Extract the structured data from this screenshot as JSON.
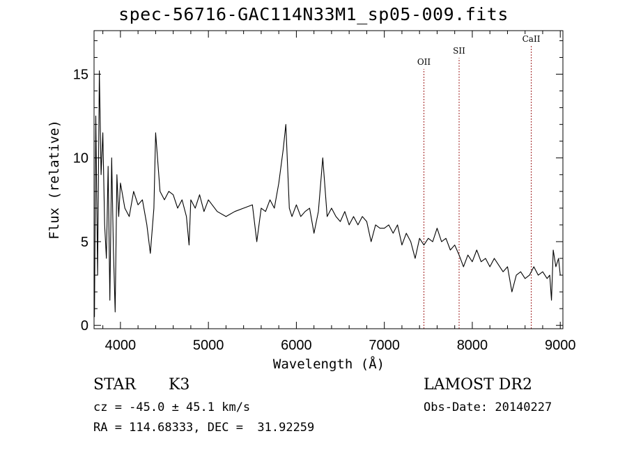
{
  "chart_data": {
    "type": "line",
    "title": "spec-56716-GAC114N33M1_sp05-009.fits",
    "xlabel": "Wavelength (Å)",
    "ylabel": "Flux (relative)",
    "xlim": [
      3700,
      9030
    ],
    "ylim": [
      -0.2,
      17.6
    ],
    "xticks": [
      4000,
      5000,
      6000,
      7000,
      8000,
      9000
    ],
    "yticks": [
      0,
      5,
      10,
      15
    ],
    "lines": [
      {
        "label": "OII",
        "x": 7450,
        "color": "#a02020"
      },
      {
        "label": "SII",
        "x": 7850,
        "color": "#a02020"
      },
      {
        "label": "CaII",
        "x": 8670,
        "color": "#a02020"
      }
    ],
    "series": [
      {
        "color": "#000000",
        "x": [
          3705,
          3720,
          3740,
          3760,
          3780,
          3800,
          3820,
          3840,
          3860,
          3880,
          3900,
          3920,
          3940,
          3960,
          3980,
          4000,
          4050,
          4100,
          4150,
          4200,
          4250,
          4300,
          4340,
          4380,
          4400,
          4450,
          4500,
          4550,
          4600,
          4650,
          4700,
          4750,
          4780,
          4800,
          4850,
          4900,
          4950,
          5000,
          5100,
          5200,
          5300,
          5400,
          5500,
          5550,
          5600,
          5650,
          5700,
          5750,
          5800,
          5850,
          5880,
          5900,
          5920,
          5950,
          6000,
          6050,
          6100,
          6150,
          6200,
          6250,
          6300,
          6350,
          6400,
          6450,
          6500,
          6550,
          6600,
          6650,
          6700,
          6750,
          6800,
          6850,
          6900,
          6950,
          7000,
          7050,
          7100,
          7150,
          7200,
          7250,
          7300,
          7350,
          7400,
          7450,
          7500,
          7550,
          7600,
          7650,
          7700,
          7750,
          7800,
          7850,
          7900,
          7950,
          8000,
          8050,
          8100,
          8150,
          8200,
          8250,
          8300,
          8350,
          8400,
          8450,
          8500,
          8550,
          8600,
          8650,
          8700,
          8750,
          8800,
          8850,
          8880,
          8900,
          8920,
          8950,
          8980,
          9000
        ],
        "y": [
          0.5,
          12.5,
          3.0,
          15.2,
          9.0,
          11.5,
          6.0,
          4.0,
          9.5,
          1.5,
          10.0,
          4.5,
          0.8,
          9.0,
          6.5,
          8.5,
          7.0,
          6.5,
          8.0,
          7.2,
          7.5,
          6.0,
          4.3,
          7.0,
          11.5,
          8.0,
          7.5,
          8.0,
          7.8,
          7.0,
          7.5,
          6.5,
          4.8,
          7.5,
          7.0,
          7.8,
          6.8,
          7.5,
          6.8,
          6.5,
          6.8,
          7.0,
          7.2,
          5.0,
          7.0,
          6.8,
          7.5,
          7.0,
          8.5,
          10.5,
          12.0,
          9.5,
          7.0,
          6.5,
          7.2,
          6.5,
          6.8,
          7.0,
          5.5,
          6.8,
          10.0,
          6.5,
          7.0,
          6.5,
          6.2,
          6.8,
          6.0,
          6.5,
          6.0,
          6.5,
          6.2,
          5.0,
          6.0,
          5.8,
          5.8,
          6.0,
          5.5,
          6.0,
          4.8,
          5.5,
          5.0,
          4.0,
          5.2,
          4.8,
          5.2,
          5.0,
          5.8,
          5.0,
          5.2,
          4.5,
          4.8,
          4.2,
          3.5,
          4.2,
          3.8,
          4.5,
          3.8,
          4.0,
          3.5,
          4.0,
          3.6,
          3.2,
          3.5,
          2.0,
          3.0,
          3.2,
          2.8,
          3.0,
          3.5,
          3.0,
          3.2,
          2.8,
          3.0,
          1.5,
          4.5,
          3.5,
          4.0,
          3.0
        ]
      }
    ],
    "grid": false
  },
  "info": {
    "class_label": "STAR",
    "subclass": "K3",
    "survey": "LAMOST DR2",
    "cz": "cz = -45.0 ± 45.1 km/s",
    "obs_date": "Obs-Date: 20140227",
    "radec": "RA = 114.68333, DEC =  31.92259"
  }
}
